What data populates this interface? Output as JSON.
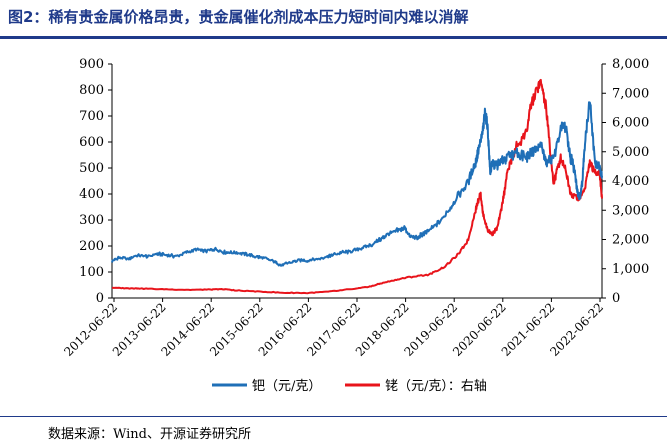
{
  "title": "图2：稀有贵金属价格昂贵，贵金属催化剂成本压力短时间内难以消解",
  "source": "数据来源：Wind、开源证券研究所",
  "colors": {
    "palladium": "#1f6fb7",
    "rhodium": "#e8141b",
    "title": "#1f3a8a"
  },
  "chart_data": {
    "type": "line",
    "title": "稀有贵金属价格昂贵，贵金属催化剂成本压力短时间内难以消解",
    "x_ticks": [
      "2012-06-22",
      "2013-06-22",
      "2014-06-22",
      "2015-06-22",
      "2016-06-22",
      "2017-06-22",
      "2018-06-22",
      "2019-06-22",
      "2020-06-22",
      "2021-06-22",
      "2022-06-22"
    ],
    "xlim": [
      2012.47,
      2022.55
    ],
    "y_left": {
      "label": "钯（元/克）",
      "min": 0,
      "max": 900,
      "ticks": [
        "0",
        "100",
        "200",
        "300",
        "400",
        "500",
        "600",
        "700",
        "800",
        "900"
      ]
    },
    "y_right": {
      "label": "铑（元/克）：右轴",
      "min": 0,
      "max": 8000,
      "ticks": [
        "0",
        "1,000",
        "2,000",
        "3,000",
        "4,000",
        "5,000",
        "6,000",
        "7,000",
        "8,000"
      ]
    },
    "legend": [
      "钯（元/克）",
      "铑（元/克）：右轴"
    ],
    "legend_position": "bottom",
    "series": [
      {
        "name": "钯（元/克）",
        "axis": "left",
        "x": [
          2012.47,
          2012.6,
          2012.8,
          2013.0,
          2013.2,
          2013.4,
          2013.6,
          2013.8,
          2014.0,
          2014.2,
          2014.4,
          2014.6,
          2014.8,
          2015.0,
          2015.2,
          2015.4,
          2015.6,
          2015.8,
          2015.95,
          2016.1,
          2016.3,
          2016.5,
          2016.7,
          2016.9,
          2017.0,
          2017.2,
          2017.4,
          2017.6,
          2017.8,
          2018.0,
          2018.1,
          2018.3,
          2018.5,
          2018.6,
          2018.75,
          2018.85,
          2019.0,
          2019.2,
          2019.4,
          2019.6,
          2019.8,
          2019.95,
          2020.0,
          2020.1,
          2020.15,
          2020.2,
          2020.25,
          2020.3,
          2020.4,
          2020.5,
          2020.6,
          2020.8,
          2021.0,
          2021.1,
          2021.2,
          2021.3,
          2021.4,
          2021.5,
          2021.6,
          2021.7,
          2021.8,
          2021.9,
          2021.95,
          2022.0,
          2022.05,
          2022.1,
          2022.15,
          2022.2,
          2022.3,
          2022.4,
          2022.5,
          2022.55
        ],
        "values": [
          140,
          155,
          150,
          165,
          160,
          170,
          165,
          160,
          175,
          185,
          180,
          190,
          175,
          175,
          170,
          160,
          155,
          140,
          125,
          135,
          145,
          145,
          150,
          160,
          165,
          175,
          180,
          190,
          205,
          225,
          240,
          255,
          270,
          235,
          230,
          245,
          260,
          290,
          340,
          395,
          450,
          520,
          560,
          640,
          720,
          650,
          480,
          520,
          510,
          530,
          545,
          560,
          540,
          565,
          570,
          590,
          520,
          530,
          560,
          650,
          665,
          540,
          520,
          470,
          400,
          390,
          460,
          600,
          760,
          530,
          500,
          470
        ]
      },
      {
        "name": "铑（元/克）：右轴",
        "axis": "right",
        "x": [
          2012.47,
          2012.8,
          2013.0,
          2013.5,
          2014.0,
          2014.5,
          2014.8,
          2015.0,
          2015.5,
          2016.0,
          2016.5,
          2017.0,
          2017.5,
          2017.8,
          2018.0,
          2018.3,
          2018.6,
          2019.0,
          2019.3,
          2019.6,
          2019.8,
          2019.95,
          2020.05,
          2020.1,
          2020.2,
          2020.3,
          2020.4,
          2020.5,
          2020.6,
          2020.7,
          2020.8,
          2021.0,
          2021.1,
          2021.2,
          2021.3,
          2021.4,
          2021.5,
          2021.55,
          2021.6,
          2021.7,
          2021.8,
          2021.9,
          2022.0,
          2022.1,
          2022.2,
          2022.3,
          2022.4,
          2022.5,
          2022.55
        ],
        "values": [
          350,
          330,
          330,
          300,
          280,
          290,
          300,
          260,
          220,
          180,
          170,
          230,
          320,
          400,
          500,
          620,
          720,
          800,
          1050,
          1500,
          2000,
          3000,
          3600,
          2900,
          2300,
          2200,
          2400,
          3200,
          4300,
          4800,
          5200,
          5700,
          6700,
          7100,
          7300,
          6500,
          4800,
          3900,
          4200,
          4800,
          4400,
          3600,
          3500,
          3400,
          3800,
          4600,
          4300,
          4300,
          3400
        ]
      }
    ]
  }
}
